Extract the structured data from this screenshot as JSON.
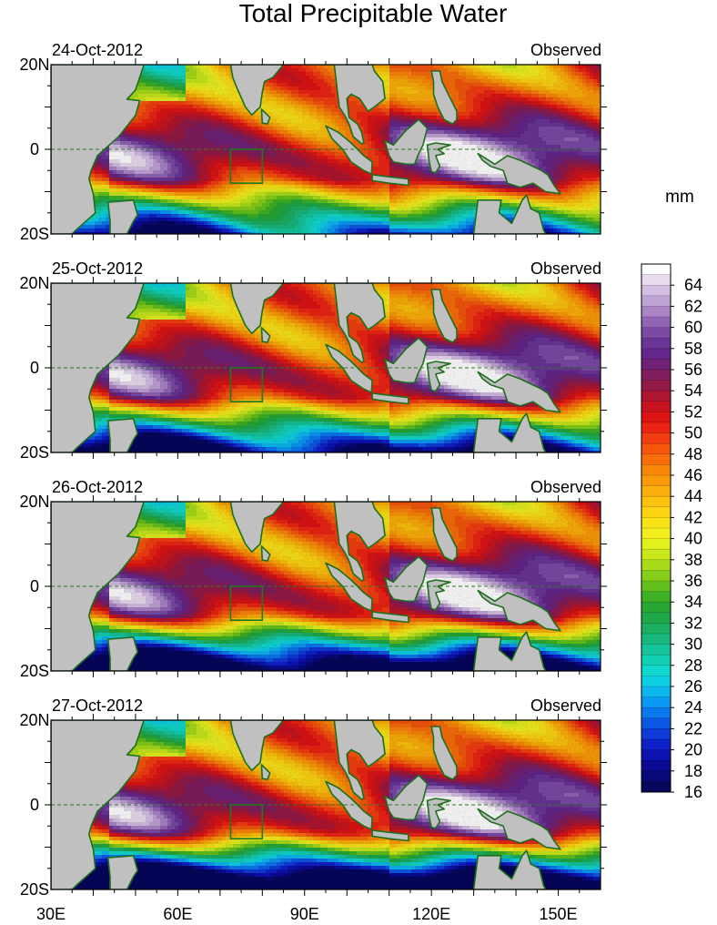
{
  "title": "Total Precipitable Water",
  "units_label": "mm",
  "panels": [
    {
      "date": "24-Oct-2012",
      "label": "Observed",
      "moist_shift": 0.0
    },
    {
      "date": "25-Oct-2012",
      "label": "Observed",
      "moist_shift": -0.5
    },
    {
      "date": "26-Oct-2012",
      "label": "Observed",
      "moist_shift": -1.0
    },
    {
      "date": "27-Oct-2012",
      "label": "Observed",
      "moist_shift": -1.5
    }
  ],
  "lat_ticks": [
    {
      "label": "20N",
      "value": 20
    },
    {
      "label": "0",
      "value": 0
    },
    {
      "label": "20S",
      "value": -20
    }
  ],
  "lon_ticks": [
    {
      "label": "30E",
      "value": 30
    },
    {
      "label": "60E",
      "value": 60
    },
    {
      "label": "90E",
      "value": 90
    },
    {
      "label": "120E",
      "value": 120
    },
    {
      "label": "150E",
      "value": 150
    }
  ],
  "colorbar": {
    "labels": [
      "64",
      "62",
      "60",
      "58",
      "56",
      "54",
      "52",
      "50",
      "48",
      "46",
      "44",
      "42",
      "40",
      "38",
      "36",
      "34",
      "32",
      "30",
      "28",
      "26",
      "24",
      "22",
      "20",
      "18",
      "16"
    ],
    "levels": [
      66,
      65,
      64,
      63,
      62,
      61,
      60,
      59,
      58,
      57,
      56,
      55,
      54,
      53,
      52,
      51,
      50,
      49,
      48,
      47,
      46,
      45,
      44,
      43,
      42,
      41,
      40,
      39,
      38,
      37,
      36,
      35,
      34,
      33,
      32,
      31,
      30,
      29,
      28,
      27,
      26,
      25,
      24,
      23,
      22,
      21,
      20,
      19,
      18,
      17,
      16,
      15
    ],
    "colors": [
      "#ffffff",
      "#e8dcef",
      "#d4bfe3",
      "#c0a3d6",
      "#a985c6",
      "#9065b5",
      "#7a4aa5",
      "#6a3596",
      "#64268a",
      "#6f2277",
      "#7f1d5d",
      "#931a47",
      "#b01530",
      "#c8141f",
      "#dc1414",
      "#ec2414",
      "#f23e10",
      "#f5560c",
      "#f86e0a",
      "#fa8608",
      "#fb9a08",
      "#fcae0a",
      "#fcc20e",
      "#fcd412",
      "#fae218",
      "#f4ee1e",
      "#e2f01e",
      "#c8e81c",
      "#a8dc1a",
      "#86ce1a",
      "#64c01c",
      "#3eb224",
      "#27a834",
      "#1ea848",
      "#1caf62",
      "#18b87e",
      "#15c49a",
      "#12d0b4",
      "#10d8ce",
      "#0ed0e2",
      "#0cb6ee",
      "#0a98f2",
      "#0a78ee",
      "#0c58e4",
      "#0e3ad8",
      "#0e20c8",
      "#0c12b0",
      "#0a0a94",
      "#080878",
      "#06065c"
    ]
  },
  "map_extent": {
    "lon_min": 30,
    "lon_max": 160,
    "lat_min": -20,
    "lat_max": 20
  },
  "colors": {
    "land": "#c0c0c0",
    "coastline": "#1e6e1e",
    "box_outline": "#1e7a1e"
  }
}
